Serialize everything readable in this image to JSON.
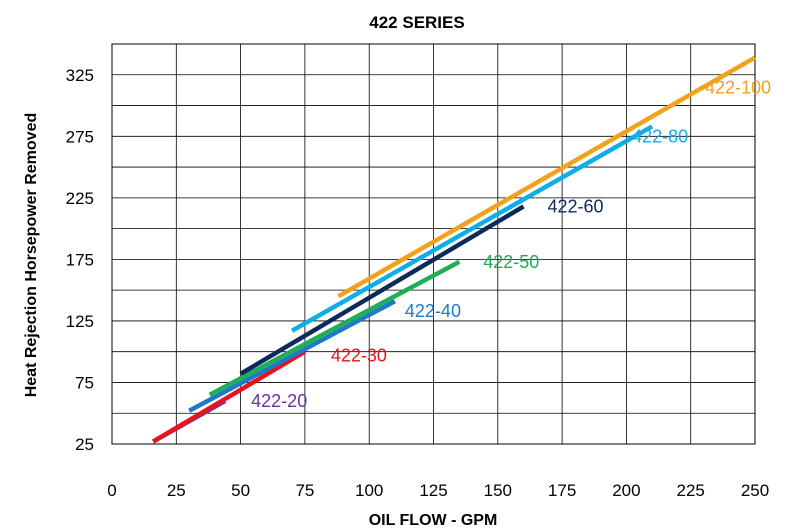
{
  "chart_data": {
    "type": "line",
    "title": "422 SERIES",
    "xlabel": "OIL FLOW - GPM",
    "ylabel": "Heat Rejection Horsepower Removed",
    "xlim": [
      0,
      250
    ],
    "ylim": [
      25,
      350
    ],
    "x_ticks": [
      "0",
      "25",
      "50",
      "75",
      "100",
      "125",
      "150",
      "175",
      "200",
      "225",
      "250"
    ],
    "y_ticks": [
      "25",
      "75",
      "125",
      "175",
      "225",
      "275",
      "325"
    ],
    "grid": true,
    "series": [
      {
        "name": "422-20",
        "color": "#7030A0",
        "x": [
          16,
          44
        ],
        "y": [
          27,
          60
        ]
      },
      {
        "name": "422-30",
        "color": "#E8141C",
        "x": [
          16,
          75
        ],
        "y": [
          27,
          100
        ]
      },
      {
        "name": "422-40",
        "color": "#1F78C8",
        "x": [
          30,
          110
        ],
        "y": [
          52,
          141
        ]
      },
      {
        "name": "422-50",
        "color": "#1FAE55",
        "x": [
          38,
          135
        ],
        "y": [
          65,
          173
        ]
      },
      {
        "name": "422-60",
        "color": "#0E2A5C",
        "x": [
          50,
          160
        ],
        "y": [
          82,
          218
        ]
      },
      {
        "name": "422-80",
        "color": "#10AEE6",
        "x": [
          70,
          210
        ],
        "y": [
          117,
          283
        ]
      },
      {
        "name": "422-100",
        "color": "#F2A21A",
        "x": [
          88,
          250
        ],
        "y": [
          145,
          339
        ]
      }
    ]
  }
}
